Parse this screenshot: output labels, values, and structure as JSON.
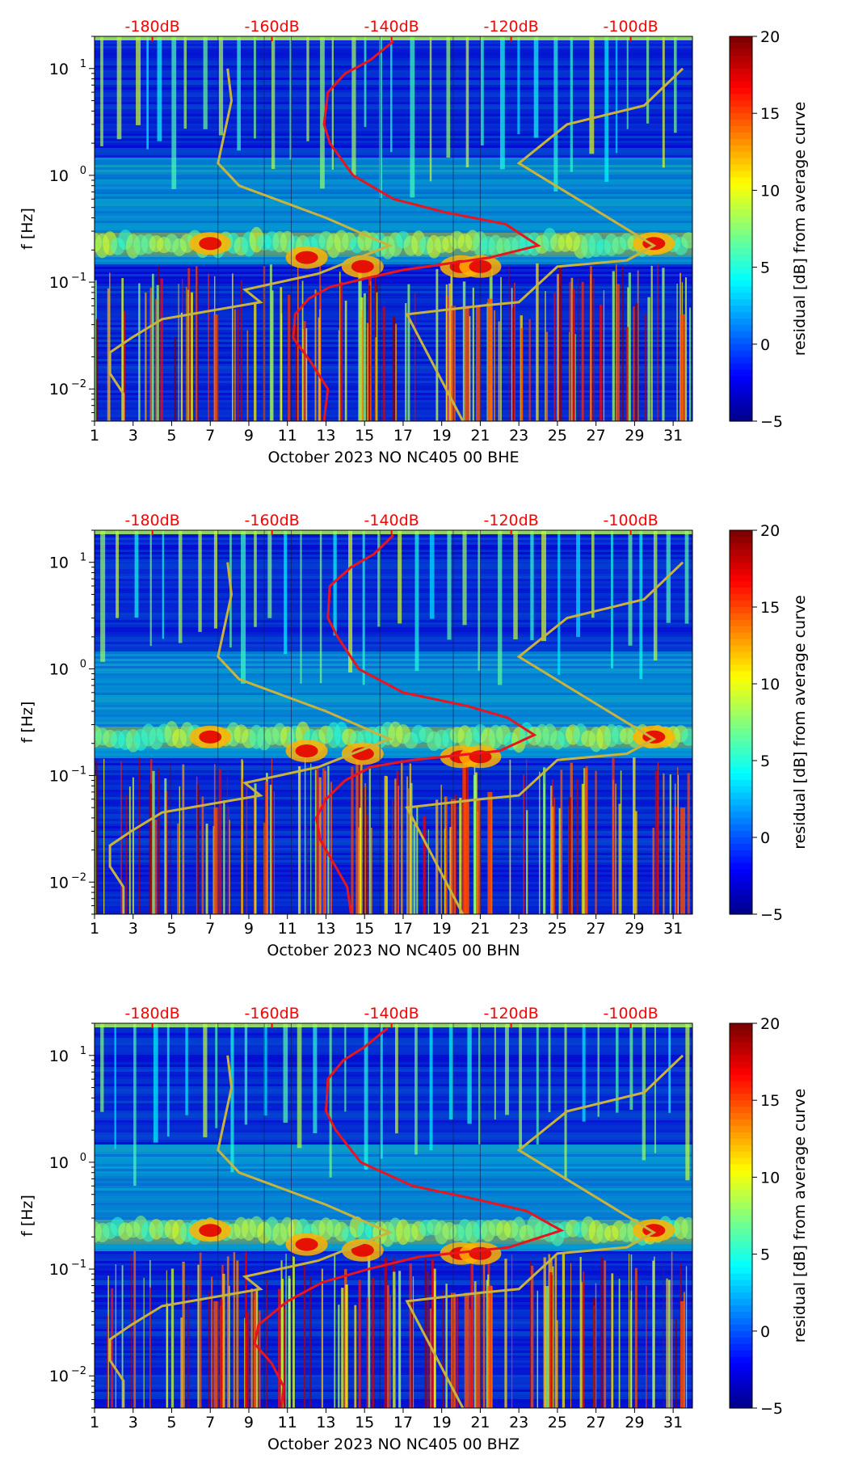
{
  "colorbar": {
    "label": "residual [dB] from average curve",
    "ticks": [
      "20",
      "15",
      "10",
      "5",
      "0",
      "−5"
    ],
    "range": [
      -5,
      20
    ],
    "colormap": [
      "#00008f",
      "#0000ff",
      "#0080ff",
      "#00ffff",
      "#80ff80",
      "#ffff00",
      "#ff8000",
      "#ff0000",
      "#800000"
    ]
  },
  "colors": {
    "db_label": "#ff0000",
    "psd_curve": "#e8141e",
    "noise_model": "#c8b43c",
    "axis": "#000000",
    "background_field": "#0a1e9c"
  },
  "chart_data": [
    {
      "type": "heatmap",
      "channel": "BHE",
      "title": "",
      "xlabel": "October 2023 NO NC405 00 BHE",
      "ylabel": "f [Hz]",
      "x_ticks": [
        "1",
        "3",
        "5",
        "7",
        "9",
        "11",
        "13",
        "15",
        "17",
        "19",
        "21",
        "23",
        "25",
        "27",
        "29",
        "31"
      ],
      "y_ticks": [
        {
          "mantissa": "10",
          "exp": "1"
        },
        {
          "mantissa": "10",
          "exp": "0"
        },
        {
          "mantissa": "10",
          "exp": "−1"
        },
        {
          "mantissa": "10",
          "exp": "−2"
        }
      ],
      "xlim": [
        1,
        32
      ],
      "ylim_hz": [
        0.005,
        20
      ],
      "db_axis_labels": [
        "-180dB",
        "-160dB",
        "-140dB",
        "-120dB",
        "-100dB"
      ],
      "db_axis_days": [
        4.0,
        10.2,
        16.4,
        22.6,
        28.8
      ],
      "red_curve": [
        [
          16.5,
          18
        ],
        [
          15.3,
          12
        ],
        [
          14.0,
          9
        ],
        [
          13.1,
          6
        ],
        [
          12.9,
          3
        ],
        [
          13.2,
          2
        ],
        [
          14.4,
          1
        ],
        [
          16.5,
          0.6
        ],
        [
          19.2,
          0.45
        ],
        [
          22.3,
          0.35
        ],
        [
          24.0,
          0.22
        ],
        [
          21.5,
          0.17
        ],
        [
          17.0,
          0.13
        ],
        [
          15.2,
          0.11
        ],
        [
          13.2,
          0.09
        ],
        [
          12.1,
          0.07
        ],
        [
          11.4,
          0.05
        ],
        [
          11.3,
          0.03
        ],
        [
          12.2,
          0.018
        ],
        [
          13.1,
          0.01
        ],
        [
          12.9,
          0.005
        ]
      ],
      "model_curves": [
        [
          [
            7.9,
            10
          ],
          [
            8.1,
            5
          ],
          [
            7.4,
            1.3
          ],
          [
            8.5,
            0.8
          ],
          [
            13.0,
            0.4
          ],
          [
            16.3,
            0.22
          ],
          [
            12.6,
            0.12
          ],
          [
            8.8,
            0.085
          ],
          [
            9.6,
            0.065
          ],
          [
            6.5,
            0.052
          ],
          [
            4.5,
            0.045
          ],
          [
            2.9,
            0.03
          ],
          [
            1.8,
            0.022
          ],
          [
            1.8,
            0.014
          ],
          [
            2.5,
            0.009
          ],
          [
            2.5,
            0.005
          ]
        ],
        [
          [
            31.5,
            10
          ],
          [
            29.5,
            4.5
          ],
          [
            25.5,
            3.0
          ],
          [
            23.0,
            1.3
          ],
          [
            30.0,
            0.22
          ],
          [
            28.6,
            0.16
          ],
          [
            25.0,
            0.14
          ],
          [
            23.0,
            0.065
          ],
          [
            21.0,
            0.06
          ],
          [
            17.2,
            0.05
          ],
          [
            20.1,
            0.005
          ]
        ]
      ],
      "hotspots": [
        [
          7,
          0.23
        ],
        [
          12,
          0.17
        ],
        [
          14.9,
          0.14
        ],
        [
          20,
          0.14
        ],
        [
          21,
          0.14
        ],
        [
          30,
          0.23
        ]
      ]
    },
    {
      "type": "heatmap",
      "channel": "BHN",
      "title": "",
      "xlabel": "October 2023 NO NC405 00 BHN",
      "ylabel": "f [Hz]",
      "x_ticks": [
        "1",
        "3",
        "5",
        "7",
        "9",
        "11",
        "13",
        "15",
        "17",
        "19",
        "21",
        "23",
        "25",
        "27",
        "29",
        "31"
      ],
      "y_ticks": [
        {
          "mantissa": "10",
          "exp": "1"
        },
        {
          "mantissa": "10",
          "exp": "0"
        },
        {
          "mantissa": "10",
          "exp": "−1"
        },
        {
          "mantissa": "10",
          "exp": "−2"
        }
      ],
      "xlim": [
        1,
        32
      ],
      "ylim_hz": [
        0.005,
        20
      ],
      "db_axis_labels": [
        "-180dB",
        "-160dB",
        "-140dB",
        "-120dB",
        "-100dB"
      ],
      "db_axis_days": [
        4.0,
        10.2,
        16.4,
        22.6,
        28.8
      ],
      "red_curve": [
        [
          16.5,
          18
        ],
        [
          15.5,
          12
        ],
        [
          14.3,
          9
        ],
        [
          13.2,
          6
        ],
        [
          13.1,
          3
        ],
        [
          13.6,
          2
        ],
        [
          14.7,
          1
        ],
        [
          17.0,
          0.6
        ],
        [
          20.3,
          0.45
        ],
        [
          22.4,
          0.35
        ],
        [
          23.8,
          0.24
        ],
        [
          22.0,
          0.17
        ],
        [
          17.5,
          0.14
        ],
        [
          15.3,
          0.12
        ],
        [
          14.0,
          0.09
        ],
        [
          13.0,
          0.06
        ],
        [
          12.5,
          0.04
        ],
        [
          12.7,
          0.025
        ],
        [
          13.4,
          0.015
        ],
        [
          14.1,
          0.009
        ],
        [
          14.3,
          0.005
        ]
      ],
      "model_curves": [
        [
          [
            7.9,
            10
          ],
          [
            8.1,
            5
          ],
          [
            7.4,
            1.3
          ],
          [
            8.5,
            0.8
          ],
          [
            13.0,
            0.4
          ],
          [
            16.3,
            0.22
          ],
          [
            12.6,
            0.12
          ],
          [
            8.8,
            0.085
          ],
          [
            9.6,
            0.065
          ],
          [
            6.5,
            0.052
          ],
          [
            4.5,
            0.045
          ],
          [
            2.9,
            0.03
          ],
          [
            1.8,
            0.022
          ],
          [
            1.8,
            0.014
          ],
          [
            2.5,
            0.009
          ],
          [
            2.5,
            0.005
          ]
        ],
        [
          [
            31.5,
            10
          ],
          [
            29.5,
            4.5
          ],
          [
            25.5,
            3.0
          ],
          [
            23.0,
            1.3
          ],
          [
            30.0,
            0.22
          ],
          [
            28.6,
            0.16
          ],
          [
            25.0,
            0.14
          ],
          [
            23.0,
            0.065
          ],
          [
            21.0,
            0.06
          ],
          [
            17.2,
            0.05
          ],
          [
            20.1,
            0.005
          ]
        ]
      ],
      "hotspots": [
        [
          7,
          0.23
        ],
        [
          12,
          0.17
        ],
        [
          14.9,
          0.16
        ],
        [
          20,
          0.15
        ],
        [
          21,
          0.15
        ],
        [
          30,
          0.23
        ]
      ]
    },
    {
      "type": "heatmap",
      "channel": "BHZ",
      "title": "",
      "xlabel": "October 2023 NO NC405 00 BHZ",
      "ylabel": "f [Hz]",
      "x_ticks": [
        "1",
        "3",
        "5",
        "7",
        "9",
        "11",
        "13",
        "15",
        "17",
        "19",
        "21",
        "23",
        "25",
        "27",
        "29",
        "31"
      ],
      "y_ticks": [
        {
          "mantissa": "10",
          "exp": "1"
        },
        {
          "mantissa": "10",
          "exp": "0"
        },
        {
          "mantissa": "10",
          "exp": "−1"
        },
        {
          "mantissa": "10",
          "exp": "−2"
        }
      ],
      "xlim": [
        1,
        32
      ],
      "ylim_hz": [
        0.005,
        20
      ],
      "db_axis_labels": [
        "-180dB",
        "-160dB",
        "-140dB",
        "-120dB",
        "-100dB"
      ],
      "db_axis_days": [
        4.0,
        10.2,
        16.4,
        22.6,
        28.8
      ],
      "red_curve": [
        [
          16.2,
          18
        ],
        [
          15.0,
          12
        ],
        [
          13.9,
          9
        ],
        [
          13.1,
          6
        ],
        [
          13.0,
          3
        ],
        [
          13.5,
          2
        ],
        [
          14.8,
          1
        ],
        [
          17.5,
          0.6
        ],
        [
          20.8,
          0.45
        ],
        [
          23.4,
          0.35
        ],
        [
          25.2,
          0.23
        ],
        [
          22.5,
          0.16
        ],
        [
          17.8,
          0.13
        ],
        [
          15.2,
          0.1
        ],
        [
          12.8,
          0.075
        ],
        [
          11.0,
          0.05
        ],
        [
          9.5,
          0.03
        ],
        [
          9.3,
          0.02
        ],
        [
          10.2,
          0.013
        ],
        [
          10.8,
          0.008
        ],
        [
          10.7,
          0.005
        ]
      ],
      "model_curves": [
        [
          [
            7.9,
            10
          ],
          [
            8.1,
            5
          ],
          [
            7.4,
            1.3
          ],
          [
            8.5,
            0.8
          ],
          [
            13.0,
            0.4
          ],
          [
            16.3,
            0.22
          ],
          [
            12.6,
            0.12
          ],
          [
            8.8,
            0.085
          ],
          [
            9.6,
            0.065
          ],
          [
            6.5,
            0.052
          ],
          [
            4.5,
            0.045
          ],
          [
            2.9,
            0.03
          ],
          [
            1.8,
            0.022
          ],
          [
            1.8,
            0.014
          ],
          [
            2.5,
            0.009
          ],
          [
            2.5,
            0.005
          ]
        ],
        [
          [
            31.5,
            10
          ],
          [
            29.5,
            4.5
          ],
          [
            25.5,
            3.0
          ],
          [
            23.0,
            1.3
          ],
          [
            30.0,
            0.22
          ],
          [
            28.6,
            0.16
          ],
          [
            25.0,
            0.14
          ],
          [
            23.0,
            0.065
          ],
          [
            21.0,
            0.06
          ],
          [
            17.2,
            0.05
          ],
          [
            20.1,
            0.005
          ]
        ]
      ],
      "hotspots": [
        [
          7,
          0.23
        ],
        [
          12,
          0.17
        ],
        [
          14.9,
          0.15
        ],
        [
          20,
          0.14
        ],
        [
          21,
          0.14
        ],
        [
          30,
          0.23
        ]
      ]
    }
  ]
}
